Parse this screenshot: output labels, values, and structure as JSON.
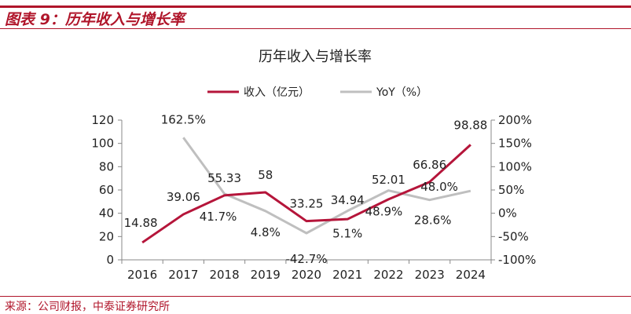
{
  "figure": {
    "label": "图表 9：历年收入与增长率",
    "source": "来源：公司财报，中泰证券研究所"
  },
  "chart_data": {
    "type": "line",
    "title": "历年收入与增长率",
    "categories": [
      "2016",
      "2017",
      "2018",
      "2019",
      "2020",
      "2021",
      "2022",
      "2023",
      "2024"
    ],
    "series": [
      {
        "name": "收入（亿元）",
        "axis": "left",
        "color": "#b5153a",
        "values": [
          14.88,
          39.06,
          55.33,
          58,
          33.25,
          34.94,
          52.01,
          66.86,
          98.88
        ],
        "labels": [
          "14.88",
          "39.06",
          "55.33",
          "58",
          "33.25",
          "34.94",
          "52.01",
          "66.86",
          "98.88"
        ]
      },
      {
        "name": "YoY（%）",
        "axis": "right",
        "color": "#bfbfbf",
        "values": [
          null,
          162.5,
          41.7,
          4.8,
          -42.7,
          5.1,
          48.9,
          28.6,
          48.0
        ],
        "labels": [
          "",
          "162.5%",
          "41.7%",
          "4.8%",
          "-42.7%",
          "5.1%",
          "48.9%",
          "28.6%",
          "48.0%"
        ]
      }
    ],
    "y_left": {
      "min": 0,
      "max": 120,
      "ticks": [
        "0",
        "20",
        "40",
        "60",
        "80",
        "100",
        "120"
      ]
    },
    "y_right": {
      "min": -100,
      "max": 200,
      "ticks": [
        "-100%",
        "-50%",
        "0%",
        "50%",
        "100%",
        "150%",
        "200%"
      ]
    },
    "grid": false,
    "legend_position": "top"
  }
}
